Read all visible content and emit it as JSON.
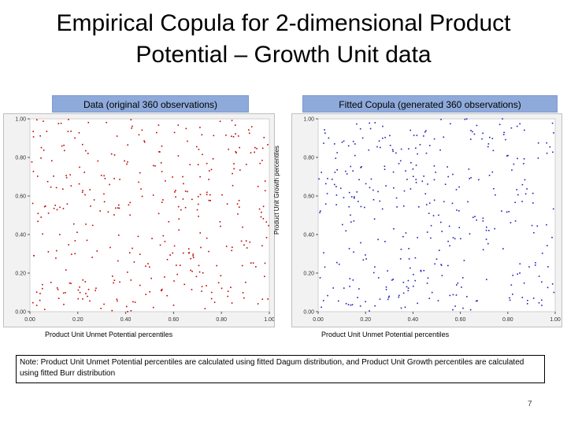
{
  "title_line1": "Empirical Copula for 2-dimensional Product",
  "title_line2": "Potential – Growth Unit data",
  "note": "Note: Product Unit Unmet Potential percentiles are calculated using fitted Dagum distribution, and Product Unit Growth percentiles are calculated using fitted Burr distribution",
  "page_number": "7",
  "chart_data": [
    {
      "type": "scatter",
      "title": "Data (original 360 observations)",
      "xlabel": "Product Unit Unmet Potential percentiles",
      "ylabel": "Product Unit Growth percentiles",
      "xlim": [
        0,
        1
      ],
      "ylim": [
        0,
        1
      ],
      "xticks": [
        "0.00",
        "0.20",
        "0.40",
        "0.60",
        "0.80",
        "1.00"
      ],
      "yticks": [
        "0.00",
        "0.20",
        "0.40",
        "0.60",
        "0.80",
        "1.00"
      ],
      "grid": false,
      "color": "#c00000",
      "seed": 17,
      "n": 360
    },
    {
      "type": "scatter",
      "title": "Fitted Copula (generated 360 observations)",
      "xlabel": "Product Unit Unmet Potential percentiles",
      "ylabel": "",
      "xlim": [
        0,
        1
      ],
      "ylim": [
        0,
        1
      ],
      "xticks": [
        "0.00",
        "0.20",
        "0.40",
        "0.60",
        "0.80",
        "1.00"
      ],
      "yticks": [
        "0.00",
        "0.20",
        "0.40",
        "0.60",
        "0.80",
        "1.00"
      ],
      "grid": false,
      "color": "#1f1fb4",
      "seed": 91,
      "n": 360
    }
  ]
}
